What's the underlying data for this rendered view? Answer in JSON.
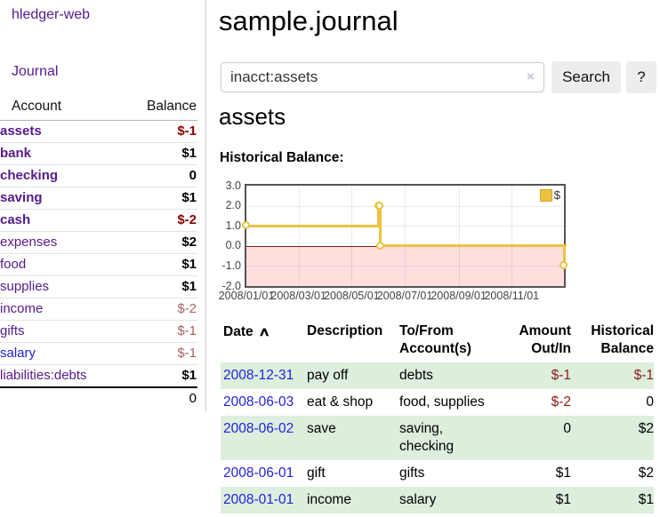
{
  "app": {
    "title": "hledger-web"
  },
  "icons": {
    "sort_ascending": "∧",
    "clear_search": "×",
    "legend_swatch": "square"
  },
  "sidebar": {
    "journal_link": "Journal",
    "accounts": {
      "headers": [
        "Account",
        "Balance"
      ],
      "rows": [
        {
          "name": "assets",
          "depth": 1,
          "bold": true,
          "link": "purple",
          "balance": "$-1",
          "bal_style": "neg-bold"
        },
        {
          "name": "bank",
          "depth": 2,
          "bold": true,
          "link": "purple",
          "balance": "$1",
          "bal_style": "pos-bold"
        },
        {
          "name": "checking",
          "depth": 3,
          "bold": true,
          "link": "purple",
          "balance": "0",
          "bal_style": "pos-bold"
        },
        {
          "name": "saving",
          "depth": 3,
          "bold": true,
          "link": "purple",
          "balance": "$1",
          "bal_style": "pos-bold"
        },
        {
          "name": "cash",
          "depth": 2,
          "bold": true,
          "link": "purple",
          "balance": "$-2",
          "bal_style": "neg-bold"
        },
        {
          "name": "expenses",
          "depth": 1,
          "bold": false,
          "link": "purple",
          "balance": "$2",
          "bal_style": "pos-bold"
        },
        {
          "name": "food",
          "depth": 2,
          "bold": false,
          "link": "purple",
          "balance": "$1",
          "bal_style": "pos-bold"
        },
        {
          "name": "supplies",
          "depth": 2,
          "bold": false,
          "link": "purple",
          "balance": "$1",
          "bal_style": "pos-bold"
        },
        {
          "name": "income",
          "depth": 1,
          "bold": false,
          "link": "purple",
          "balance": "$-2",
          "bal_style": "neg"
        },
        {
          "name": "gifts",
          "depth": 2,
          "bold": false,
          "link": "purple",
          "balance": "$-1",
          "bal_style": "neg"
        },
        {
          "name": "salary",
          "depth": 2,
          "bold": false,
          "link": "blue",
          "balance": "$-1",
          "bal_style": "neg"
        },
        {
          "name": "liabilities:debts",
          "depth": 1,
          "bold": false,
          "link": "purple",
          "balance": "$1",
          "bal_style": "pos-bold"
        }
      ],
      "total": "0"
    }
  },
  "main": {
    "title": "sample.journal",
    "search": {
      "value": "inacct:assets",
      "button_label": "Search",
      "help_label": "?"
    },
    "account_heading": "assets",
    "chart_label": "Historical Balance:"
  },
  "chart_data": {
    "type": "line",
    "step": true,
    "title": "Historical Balance",
    "series": [
      {
        "name": "$",
        "color": "#edc240",
        "points": [
          [
            "2008-01-01",
            1
          ],
          [
            "2008-06-01",
            2
          ],
          [
            "2008-06-02",
            2
          ],
          [
            "2008-06-03",
            0
          ],
          [
            "2008-12-31",
            -1
          ]
        ]
      }
    ],
    "xlim": [
      "2008-01-01",
      "2008-12-31"
    ],
    "ylim": [
      -2,
      3
    ],
    "y_ticks": [
      "3.0",
      "2.0",
      "1.0",
      "0.0",
      "-1.0",
      "-2.0"
    ],
    "x_ticks": [
      "2008/01/01",
      "2008/03/01",
      "2008/05/01",
      "2008/07/01",
      "2008/09/01",
      "2008/11/01"
    ],
    "legend": {
      "position": "top-right",
      "label": "$"
    },
    "grid": true,
    "negative_region_shaded": true,
    "zero_line_color": "#8d1a1a",
    "border_color": "#545454"
  },
  "transactions": {
    "headers": [
      {
        "label": "Date",
        "align": "left",
        "sorted": "asc"
      },
      {
        "label": "Description",
        "align": "left"
      },
      {
        "label": "To/From Account(s)",
        "align": "left"
      },
      {
        "label": "Amount Out/In",
        "align": "right"
      },
      {
        "label": "Historical Balance",
        "align": "right"
      }
    ],
    "rows": [
      {
        "date": "2008-12-31",
        "description": "pay off",
        "accounts": "debts",
        "amount": "$-1",
        "balance": "$-1",
        "amount_negative": true,
        "balance_negative": true,
        "shaded": true
      },
      {
        "date": "2008-06-03",
        "description": "eat & shop",
        "accounts": "food, supplies",
        "amount": "$-2",
        "balance": "0",
        "amount_negative": true,
        "balance_negative": false,
        "shaded": false
      },
      {
        "date": "2008-06-02",
        "description": "save",
        "accounts": "saving, checking",
        "amount": "0",
        "balance": "$2",
        "amount_negative": false,
        "balance_negative": false,
        "shaded": true
      },
      {
        "date": "2008-06-01",
        "description": "gift",
        "accounts": "gifts",
        "amount": "$1",
        "balance": "$2",
        "amount_negative": false,
        "balance_negative": false,
        "shaded": false
      },
      {
        "date": "2008-01-01",
        "description": "income",
        "accounts": "salary",
        "amount": "$1",
        "balance": "$1",
        "amount_negative": false,
        "balance_negative": false,
        "shaded": true
      }
    ]
  }
}
